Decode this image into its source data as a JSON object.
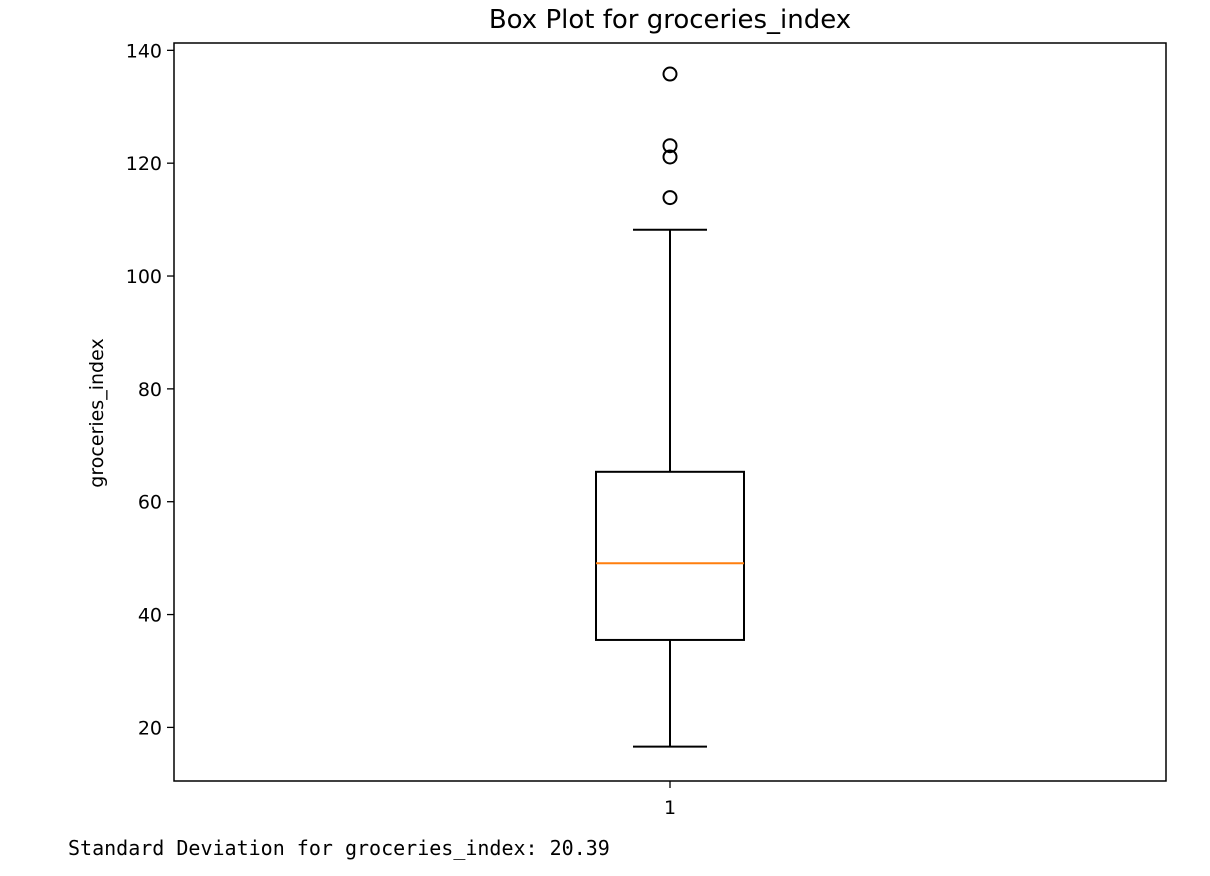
{
  "chart_data": {
    "type": "box",
    "title": "Box Plot for groceries_index",
    "xlabel": "",
    "ylabel": "groceries_index",
    "categories": [
      "1"
    ],
    "ylim": [
      10.5,
      141.3
    ],
    "yticks": [
      20,
      40,
      60,
      80,
      100,
      120,
      140
    ],
    "box": {
      "whisker_low": 16.6,
      "q1": 35.5,
      "median": 49.1,
      "q3": 65.3,
      "whisker_high": 108.2
    },
    "outliers": [
      113.9,
      121.1,
      123.1,
      135.8
    ],
    "colors": {
      "box": "#000000",
      "median": "#ff7f0e",
      "outlier": "#000000"
    }
  },
  "output": {
    "text": "Standard Deviation for groceries_index: 20.39"
  }
}
